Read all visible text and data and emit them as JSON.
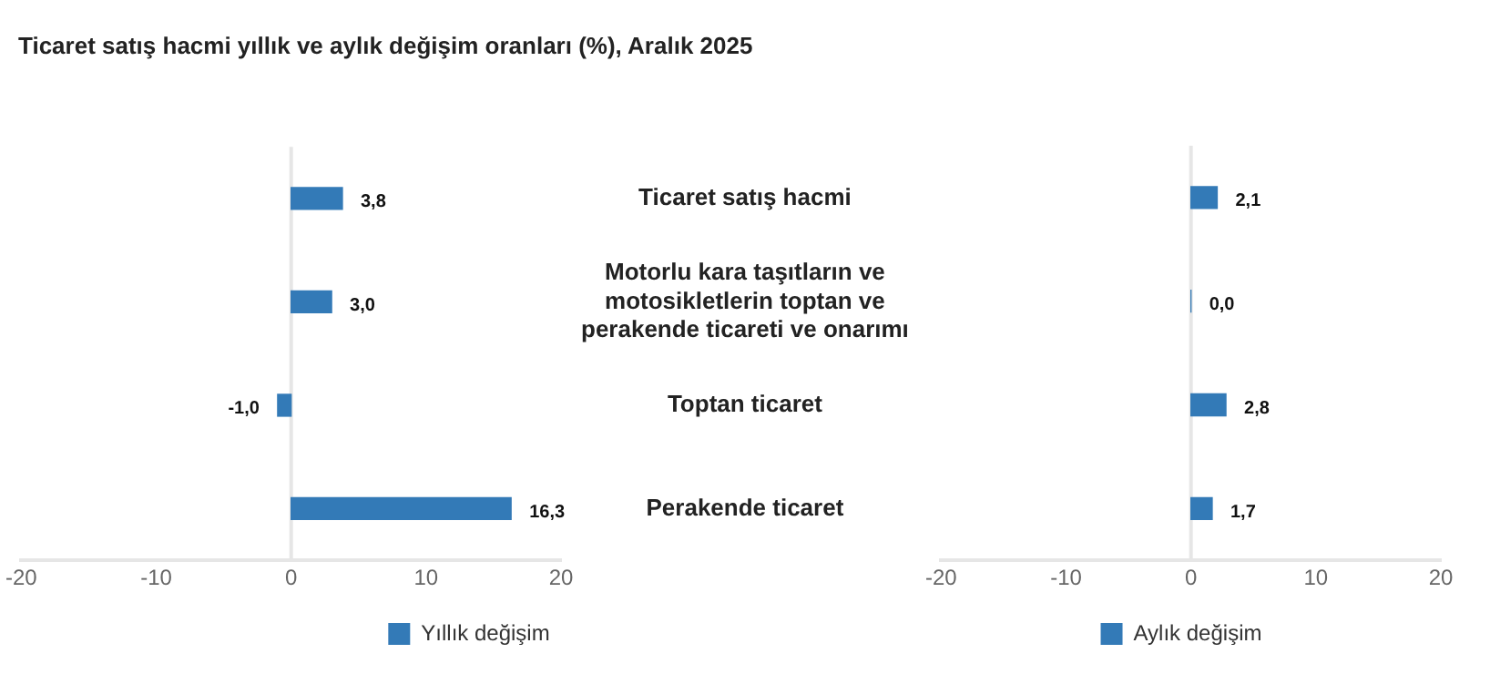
{
  "chart_data": [
    {
      "type": "bar",
      "orientation": "horizontal",
      "title": "Ticaret satış hacmi yıllık ve aylık değişim oranları (%), Aralık 2025",
      "categories": [
        "Ticaret satış hacmi",
        "Motorlu kara taşıtların ve motosikletlerin toptan ve perakende ticareti ve onarımı",
        "Toptan ticaret",
        "Perakende ticaret"
      ],
      "series": [
        {
          "name": "Yıllık değişim",
          "color": "#337ab7",
          "values": [
            3.8,
            3.0,
            -1.0,
            16.3
          ],
          "value_labels": [
            "3,8",
            "3,0",
            "-1,0",
            "16,3"
          ]
        }
      ],
      "xlim": [
        -20,
        20
      ],
      "xticks": [
        -20,
        -10,
        0,
        10,
        20
      ],
      "grid": false,
      "legend": "bottom",
      "ref_lines": [
        {
          "axis": "x",
          "value": 0,
          "color": "#e6e6e6"
        }
      ]
    },
    {
      "type": "bar",
      "orientation": "horizontal",
      "categories": [
        null,
        null,
        null,
        null
      ],
      "series": [
        {
          "name": "Aylık değişim",
          "color": "#337ab7",
          "values": [
            2.1,
            0.0,
            2.8,
            1.7
          ],
          "value_labels": [
            "2,1",
            "0,0",
            "2,8",
            "1,7"
          ]
        }
      ],
      "xlim": [
        -20,
        20
      ],
      "xticks": [
        -20,
        -10,
        0,
        10,
        20
      ],
      "grid": false,
      "legend": "bottom",
      "tick_labels": "x",
      "ref_lines": [
        {
          "axis": "x",
          "value": 0,
          "color": "#e6e6e6"
        }
      ]
    }
  ]
}
